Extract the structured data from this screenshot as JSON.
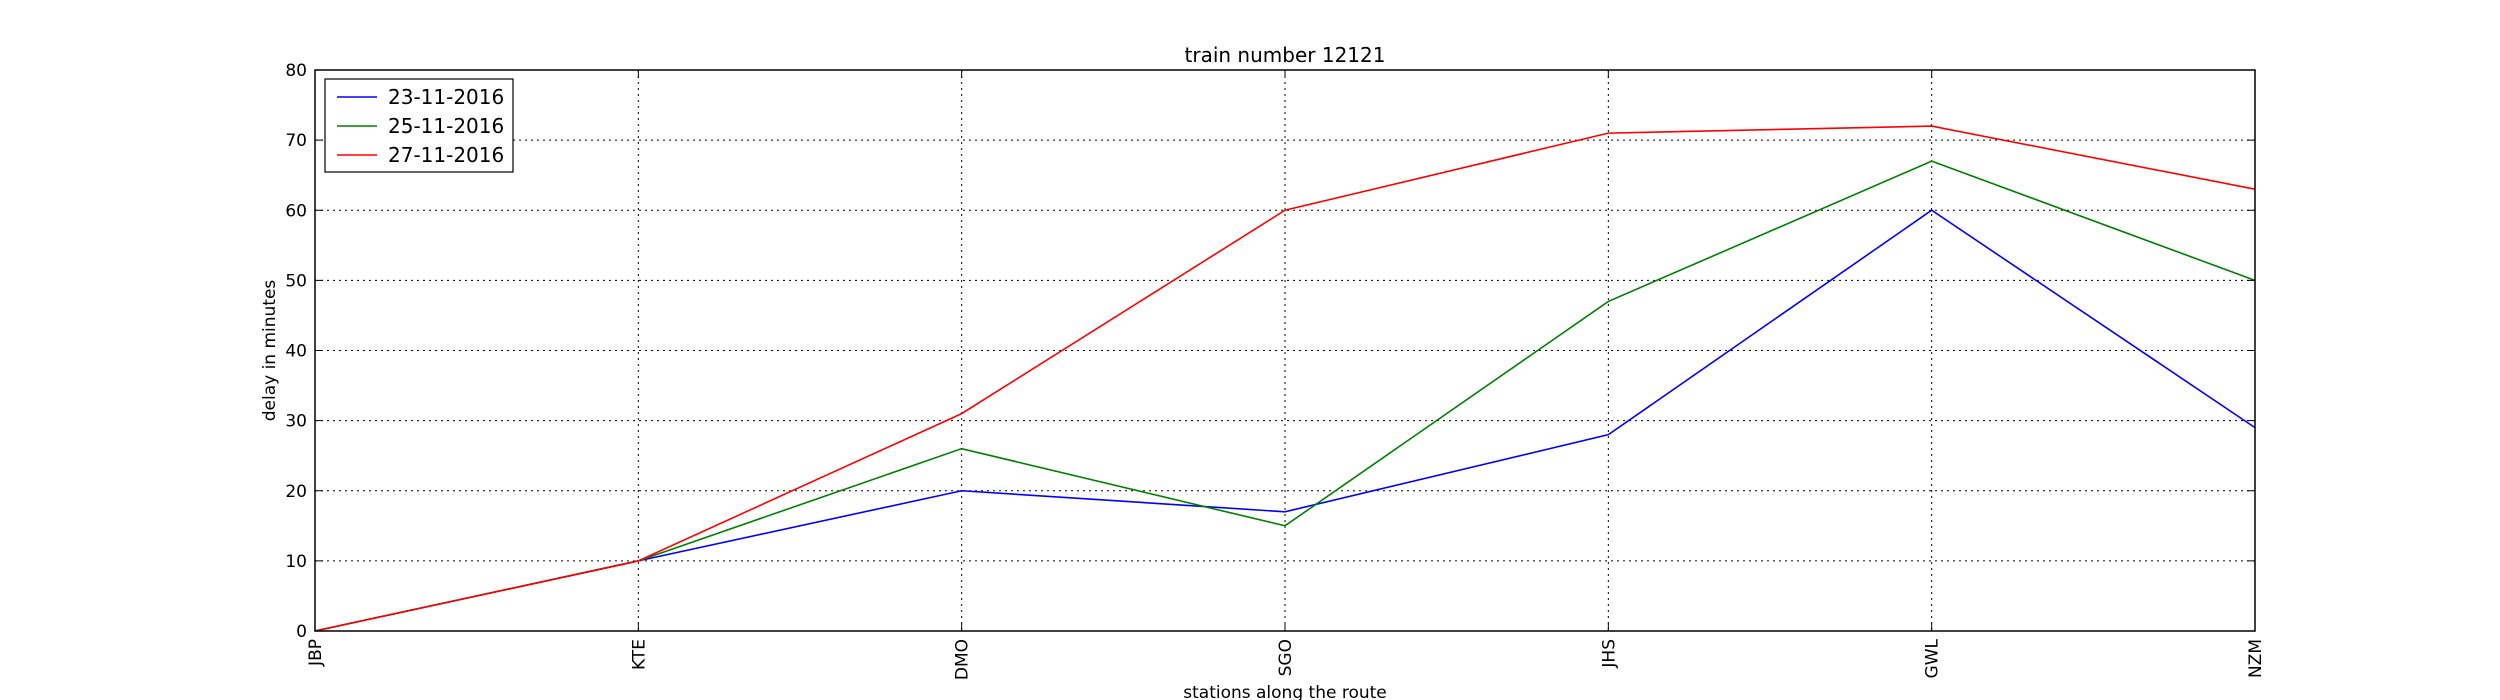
{
  "chart_data": {
    "type": "line",
    "title": "train number 12121",
    "xlabel": "stations along the route",
    "ylabel": "delay in minutes",
    "categories": [
      "JBP",
      "KTE",
      "DMO",
      "SGO",
      "JHS",
      "GWL",
      "NZM"
    ],
    "ylim": [
      0,
      80
    ],
    "yticks": [
      0,
      10,
      20,
      30,
      40,
      50,
      60,
      70,
      80
    ],
    "grid": true,
    "legend_position": "top-left",
    "series": [
      {
        "name": "23-11-2016",
        "color": "#0000ff",
        "values": [
          0,
          10,
          20,
          17,
          28,
          60,
          29
        ]
      },
      {
        "name": "25-11-2016",
        "color": "#008000",
        "values": [
          0,
          10,
          26,
          15,
          47,
          67,
          50
        ]
      },
      {
        "name": "27-11-2016",
        "color": "#ff0000",
        "values": [
          0,
          10,
          31,
          60,
          71,
          72,
          63
        ]
      }
    ]
  }
}
